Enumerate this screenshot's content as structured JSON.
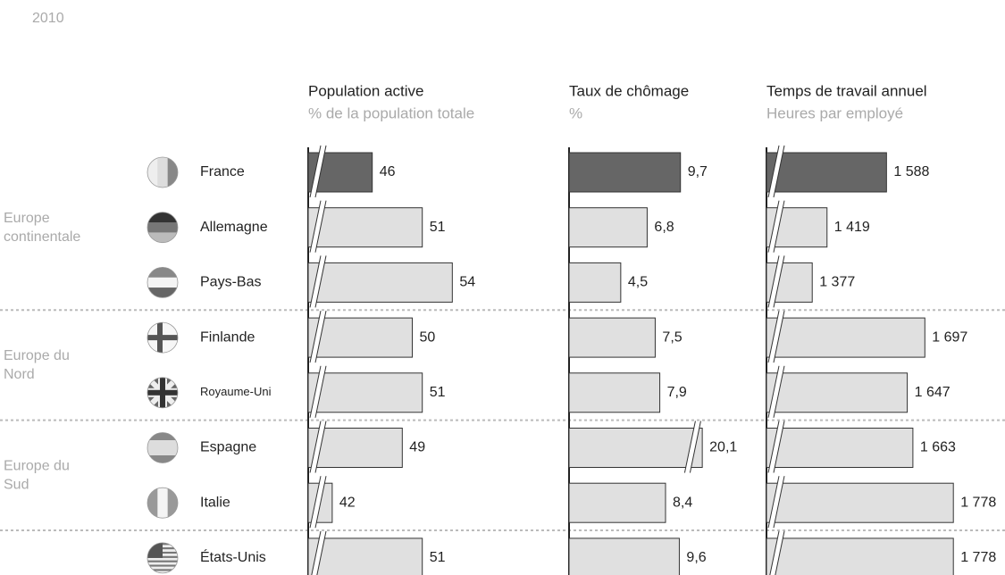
{
  "year": "2010",
  "groups": [
    {
      "label": [
        "Europe",
        "continentale"
      ],
      "countries": [
        "France",
        "Allemagne",
        "Pays-Bas"
      ]
    },
    {
      "label": [
        "Europe du",
        "Nord"
      ],
      "countries": [
        "Finlande",
        "Royaume-Uni"
      ]
    },
    {
      "label": [
        "Europe du",
        "Sud"
      ],
      "countries": [
        "Espagne",
        "Italie"
      ]
    },
    {
      "countries": [
        "États-Unis"
      ]
    }
  ],
  "chart_data": [
    {
      "type": "bar",
      "orientation": "horizontal",
      "title": "Population active",
      "subtitle": "% de la population totale",
      "values": [
        46,
        51,
        54,
        50,
        51,
        49,
        42,
        51
      ],
      "colors": [
        "#666666",
        "#e0e0e0",
        "#e0e0e0",
        "#e0e0e0",
        "#e0e0e0",
        "#e0e0e0",
        "#e0e0e0",
        "#e0e0e0"
      ],
      "xlim": [
        39.6,
        63.7
      ],
      "broken_axis": true
    },
    {
      "type": "bar",
      "orientation": "horizontal",
      "title": "Taux de chômage",
      "subtitle": "%",
      "values": [
        9.7,
        6.8,
        4.5,
        7.5,
        7.9,
        20.1,
        8.4,
        9.6
      ],
      "value_labels": [
        "9,7",
        "6,8",
        "4,5",
        "7,5",
        "7,9",
        "20,1",
        "8,4",
        "9,6"
      ],
      "colors": [
        "#666666",
        "#e0e0e0",
        "#e0e0e0",
        "#e0e0e0",
        "#e0e0e0",
        "#e0e0e0",
        "#e0e0e0",
        "#e0e0e0"
      ],
      "xlim": [
        0,
        29.5
      ],
      "xbreak": [
        11,
        19.5
      ],
      "broken_axis": false
    },
    {
      "type": "bar",
      "orientation": "horizontal",
      "title": "Temps de travail annuel",
      "subtitle": "Heures par employé",
      "values": [
        1588,
        1419,
        1377,
        1697,
        1647,
        1663,
        1778,
        1778
      ],
      "value_labels": [
        "1 588",
        "1 419",
        "1 377",
        "1 697",
        "1 647",
        "1 663",
        "1 778",
        "1 778"
      ],
      "colors": [
        "#666666",
        "#e0e0e0",
        "#e0e0e0",
        "#e0e0e0",
        "#e0e0e0",
        "#e0e0e0",
        "#e0e0e0",
        "#e0e0e0"
      ],
      "xlim": [
        1247,
        1912
      ],
      "broken_axis": true
    }
  ]
}
